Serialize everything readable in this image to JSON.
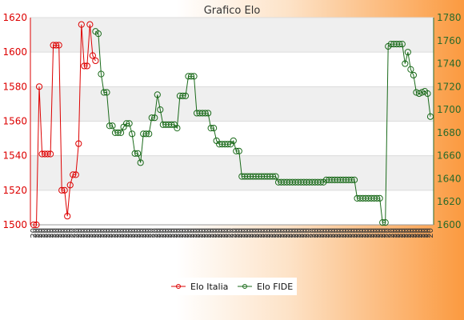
{
  "chart_data": {
    "type": "line",
    "title": "Grafico Elo",
    "y_left": {
      "min": 1500,
      "max": 1620,
      "ticks": [
        1500,
        1520,
        1540,
        1560,
        1580,
        1600,
        1620
      ]
    },
    "y_right": {
      "min": 1600,
      "max": 1780,
      "ticks": [
        1600,
        1620,
        1640,
        1660,
        1680,
        1700,
        1720,
        1740,
        1760,
        1780
      ]
    },
    "grid": true,
    "legend_position": "bottom",
    "x_tick_prefix": "20",
    "series": [
      {
        "name": "Elo Italia",
        "axis": "left",
        "color": "#dd0000",
        "points": [
          [
            1,
            1500
          ],
          [
            2,
            1500
          ],
          [
            3,
            1580
          ],
          [
            4,
            1541
          ],
          [
            5,
            1541
          ],
          [
            6,
            1541
          ],
          [
            7,
            1541
          ],
          [
            8,
            1604
          ],
          [
            9,
            1604
          ],
          [
            10,
            1604
          ],
          [
            11,
            1520
          ],
          [
            12,
            1520
          ],
          [
            13,
            1505
          ],
          [
            14,
            1523
          ],
          [
            15,
            1529
          ],
          [
            16,
            1529
          ],
          [
            17,
            1547
          ],
          [
            18,
            1616
          ],
          [
            19,
            1592
          ],
          [
            20,
            1592
          ],
          [
            21,
            1616
          ],
          [
            22,
            1598
          ],
          [
            23,
            1595
          ]
        ]
      },
      {
        "name": "Elo FIDE",
        "axis": "right",
        "color": "#1a6a1a",
        "points": [
          [
            23,
            1768
          ],
          [
            24,
            1766
          ],
          [
            25,
            1731
          ],
          [
            26,
            1715
          ],
          [
            27,
            1715
          ],
          [
            28,
            1686
          ],
          [
            29,
            1686
          ],
          [
            30,
            1680
          ],
          [
            31,
            1680
          ],
          [
            32,
            1680
          ],
          [
            33,
            1685
          ],
          [
            34,
            1688
          ],
          [
            35,
            1688
          ],
          [
            36,
            1679
          ],
          [
            37,
            1662
          ],
          [
            38,
            1662
          ],
          [
            39,
            1654
          ],
          [
            40,
            1679
          ],
          [
            41,
            1679
          ],
          [
            42,
            1679
          ],
          [
            43,
            1693
          ],
          [
            44,
            1693
          ],
          [
            45,
            1713
          ],
          [
            46,
            1700
          ],
          [
            47,
            1687
          ],
          [
            48,
            1687
          ],
          [
            49,
            1687
          ],
          [
            50,
            1687
          ],
          [
            51,
            1687
          ],
          [
            52,
            1684
          ],
          [
            53,
            1712
          ],
          [
            54,
            1712
          ],
          [
            55,
            1712
          ],
          [
            56,
            1729
          ],
          [
            57,
            1729
          ],
          [
            58,
            1729
          ],
          [
            59,
            1697
          ],
          [
            60,
            1697
          ],
          [
            61,
            1697
          ],
          [
            62,
            1697
          ],
          [
            63,
            1697
          ],
          [
            64,
            1684
          ],
          [
            65,
            1684
          ],
          [
            66,
            1673
          ],
          [
            67,
            1670
          ],
          [
            68,
            1670
          ],
          [
            69,
            1670
          ],
          [
            70,
            1670
          ],
          [
            71,
            1670
          ],
          [
            72,
            1673
          ],
          [
            73,
            1664
          ],
          [
            74,
            1664
          ],
          [
            75,
            1642
          ],
          [
            76,
            1642
          ],
          [
            77,
            1642
          ],
          [
            78,
            1642
          ],
          [
            79,
            1642
          ],
          [
            80,
            1642
          ],
          [
            81,
            1642
          ],
          [
            82,
            1642
          ],
          [
            83,
            1642
          ],
          [
            84,
            1642
          ],
          [
            85,
            1642
          ],
          [
            86,
            1642
          ],
          [
            87,
            1642
          ],
          [
            88,
            1637
          ],
          [
            89,
            1637
          ],
          [
            90,
            1637
          ],
          [
            91,
            1637
          ],
          [
            92,
            1637
          ],
          [
            93,
            1637
          ],
          [
            94,
            1637
          ],
          [
            95,
            1637
          ],
          [
            96,
            1637
          ],
          [
            97,
            1637
          ],
          [
            98,
            1637
          ],
          [
            99,
            1637
          ],
          [
            100,
            1637
          ],
          [
            101,
            1637
          ],
          [
            102,
            1637
          ],
          [
            103,
            1637
          ],
          [
            104,
            1637
          ],
          [
            105,
            1639
          ],
          [
            106,
            1639
          ],
          [
            107,
            1639
          ],
          [
            108,
            1639
          ],
          [
            109,
            1639
          ],
          [
            110,
            1639
          ],
          [
            111,
            1639
          ],
          [
            112,
            1639
          ],
          [
            113,
            1639
          ],
          [
            114,
            1639
          ],
          [
            115,
            1639
          ],
          [
            116,
            1623
          ],
          [
            117,
            1623
          ],
          [
            118,
            1623
          ],
          [
            119,
            1623
          ],
          [
            120,
            1623
          ],
          [
            121,
            1623
          ],
          [
            122,
            1623
          ],
          [
            123,
            1623
          ],
          [
            124,
            1623
          ],
          [
            125,
            1602
          ],
          [
            126,
            1602
          ],
          [
            127,
            1755
          ],
          [
            128,
            1757
          ],
          [
            129,
            1757
          ],
          [
            130,
            1757
          ],
          [
            131,
            1757
          ],
          [
            132,
            1757
          ],
          [
            133,
            1740
          ],
          [
            134,
            1750
          ],
          [
            135,
            1735
          ],
          [
            136,
            1730
          ],
          [
            137,
            1715
          ],
          [
            138,
            1714
          ],
          [
            139,
            1715
          ],
          [
            140,
            1716
          ],
          [
            141,
            1714
          ],
          [
            142,
            1694
          ]
        ]
      }
    ],
    "legend": [
      {
        "label": "Elo Italia",
        "color": "#dd0000"
      },
      {
        "label": "Elo FIDE",
        "color": "#1a6a1a"
      }
    ]
  }
}
